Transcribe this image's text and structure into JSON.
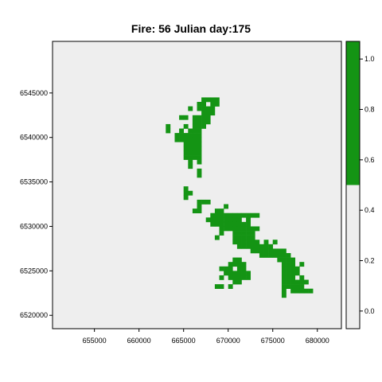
{
  "chart_data": {
    "type": "heatmap",
    "title": "Fire: 56   Julian day:175",
    "x_ticks": [
      655000,
      660000,
      665000,
      670000,
      675000,
      680000
    ],
    "y_ticks": [
      6520000,
      6525000,
      6530000,
      6535000,
      6540000,
      6545000
    ],
    "colorbar_ticks": [
      "0.0",
      "0.2",
      "0.4",
      "0.6",
      "0.8",
      "1.0"
    ],
    "xlim": [
      650300,
      682700
    ],
    "ylim": [
      6518500,
      6550800
    ],
    "colorbar_range": [
      -0.07,
      1.07
    ],
    "colorbar_break": 0.5,
    "colors": {
      "burned": "#149414",
      "unburned": "#eeeeee",
      "frame": "#000000"
    },
    "cell_size": 500,
    "cell_value": 1,
    "burned_cells": [
      [
        667000,
        6544000
      ],
      [
        667500,
        6544000
      ],
      [
        668000,
        6544000
      ],
      [
        668500,
        6544000
      ],
      [
        666500,
        6543500
      ],
      [
        667000,
        6543500
      ],
      [
        668000,
        6543500
      ],
      [
        668500,
        6543500
      ],
      [
        665500,
        6543000
      ],
      [
        666500,
        6543000
      ],
      [
        667000,
        6543000
      ],
      [
        667500,
        6543000
      ],
      [
        668000,
        6543000
      ],
      [
        667000,
        6542500
      ],
      [
        667500,
        6542500
      ],
      [
        668000,
        6542500
      ],
      [
        664500,
        6542000
      ],
      [
        665000,
        6542000
      ],
      [
        666000,
        6542000
      ],
      [
        666500,
        6542000
      ],
      [
        667000,
        6542000
      ],
      [
        667500,
        6542000
      ],
      [
        666000,
        6541500
      ],
      [
        666500,
        6541500
      ],
      [
        667000,
        6541500
      ],
      [
        667500,
        6541500
      ],
      [
        663000,
        6541000
      ],
      [
        665000,
        6541000
      ],
      [
        666000,
        6541000
      ],
      [
        666500,
        6541000
      ],
      [
        667000,
        6541000
      ],
      [
        663000,
        6540500
      ],
      [
        664500,
        6540500
      ],
      [
        665500,
        6540500
      ],
      [
        666000,
        6540500
      ],
      [
        666500,
        6540500
      ],
      [
        664000,
        6540000
      ],
      [
        664500,
        6540000
      ],
      [
        665000,
        6540000
      ],
      [
        665500,
        6540000
      ],
      [
        666000,
        6540000
      ],
      [
        666500,
        6540000
      ],
      [
        664000,
        6539500
      ],
      [
        664500,
        6539500
      ],
      [
        665000,
        6539500
      ],
      [
        665500,
        6539500
      ],
      [
        666000,
        6539500
      ],
      [
        666500,
        6539500
      ],
      [
        665000,
        6539000
      ],
      [
        665500,
        6539000
      ],
      [
        666000,
        6539000
      ],
      [
        666500,
        6539000
      ],
      [
        665000,
        6538500
      ],
      [
        665500,
        6538500
      ],
      [
        666000,
        6538500
      ],
      [
        666500,
        6538500
      ],
      [
        665000,
        6538000
      ],
      [
        665500,
        6538000
      ],
      [
        666000,
        6538000
      ],
      [
        666500,
        6538000
      ],
      [
        665000,
        6537500
      ],
      [
        665500,
        6537500
      ],
      [
        666000,
        6537500
      ],
      [
        666500,
        6537500
      ],
      [
        665500,
        6537000
      ],
      [
        666500,
        6537000
      ],
      [
        665500,
        6536500
      ],
      [
        666500,
        6536000
      ],
      [
        666500,
        6535500
      ],
      [
        665000,
        6534000
      ],
      [
        665000,
        6533500
      ],
      [
        665500,
        6533500
      ],
      [
        665000,
        6533000
      ],
      [
        666500,
        6532500
      ],
      [
        667000,
        6532500
      ],
      [
        667500,
        6532500
      ],
      [
        666500,
        6532000
      ],
      [
        669500,
        6532000
      ],
      [
        666000,
        6531500
      ],
      [
        666500,
        6531500
      ],
      [
        668500,
        6531500
      ],
      [
        669000,
        6531500
      ],
      [
        668000,
        6531000
      ],
      [
        668500,
        6531000
      ],
      [
        669000,
        6531000
      ],
      [
        669500,
        6531000
      ],
      [
        670000,
        6531000
      ],
      [
        670500,
        6531000
      ],
      [
        671000,
        6531000
      ],
      [
        671500,
        6531000
      ],
      [
        672000,
        6531000
      ],
      [
        672500,
        6531000
      ],
      [
        673000,
        6531000
      ],
      [
        667500,
        6530500
      ],
      [
        668000,
        6530500
      ],
      [
        668500,
        6530500
      ],
      [
        669000,
        6530500
      ],
      [
        669500,
        6530500
      ],
      [
        670000,
        6530500
      ],
      [
        670500,
        6530500
      ],
      [
        671000,
        6530500
      ],
      [
        672000,
        6530500
      ],
      [
        668000,
        6530000
      ],
      [
        668500,
        6530000
      ],
      [
        669000,
        6530000
      ],
      [
        669500,
        6530000
      ],
      [
        670000,
        6530000
      ],
      [
        670500,
        6530000
      ],
      [
        671000,
        6530000
      ],
      [
        671500,
        6530000
      ],
      [
        672000,
        6530000
      ],
      [
        669000,
        6529500
      ],
      [
        669500,
        6529500
      ],
      [
        670000,
        6529500
      ],
      [
        670500,
        6529500
      ],
      [
        671000,
        6529500
      ],
      [
        671500,
        6529500
      ],
      [
        672000,
        6529500
      ],
      [
        672500,
        6529500
      ],
      [
        673000,
        6529500
      ],
      [
        669000,
        6529000
      ],
      [
        670500,
        6529000
      ],
      [
        671000,
        6529000
      ],
      [
        671500,
        6529000
      ],
      [
        672000,
        6529000
      ],
      [
        672500,
        6529000
      ],
      [
        668500,
        6528500
      ],
      [
        670500,
        6528500
      ],
      [
        671000,
        6528500
      ],
      [
        671500,
        6528500
      ],
      [
        672000,
        6528500
      ],
      [
        672500,
        6528500
      ],
      [
        670500,
        6528000
      ],
      [
        671000,
        6528000
      ],
      [
        671500,
        6528000
      ],
      [
        672000,
        6528000
      ],
      [
        672500,
        6528000
      ],
      [
        673000,
        6528000
      ],
      [
        674000,
        6528000
      ],
      [
        675000,
        6528000
      ],
      [
        671000,
        6527500
      ],
      [
        671500,
        6527500
      ],
      [
        672000,
        6527500
      ],
      [
        672500,
        6527500
      ],
      [
        673000,
        6527500
      ],
      [
        673500,
        6527500
      ],
      [
        674000,
        6527500
      ],
      [
        674500,
        6527500
      ],
      [
        672500,
        6527000
      ],
      [
        673000,
        6527000
      ],
      [
        673500,
        6527000
      ],
      [
        674000,
        6527000
      ],
      [
        674500,
        6527000
      ],
      [
        675000,
        6527000
      ],
      [
        675500,
        6527000
      ],
      [
        676000,
        6527000
      ],
      [
        673500,
        6526500
      ],
      [
        674000,
        6526500
      ],
      [
        674500,
        6526500
      ],
      [
        675000,
        6526500
      ],
      [
        675500,
        6526500
      ],
      [
        676000,
        6526500
      ],
      [
        676500,
        6526500
      ],
      [
        670500,
        6526000
      ],
      [
        671000,
        6526000
      ],
      [
        675500,
        6526000
      ],
      [
        676000,
        6526000
      ],
      [
        676500,
        6526000
      ],
      [
        677000,
        6526000
      ],
      [
        670000,
        6525500
      ],
      [
        670500,
        6525500
      ],
      [
        671000,
        6525500
      ],
      [
        671500,
        6525500
      ],
      [
        676000,
        6525500
      ],
      [
        676500,
        6525500
      ],
      [
        677000,
        6525500
      ],
      [
        678000,
        6525500
      ],
      [
        669000,
        6525000
      ],
      [
        669500,
        6525000
      ],
      [
        670000,
        6525000
      ],
      [
        671000,
        6525000
      ],
      [
        671500,
        6525000
      ],
      [
        676000,
        6525000
      ],
      [
        676500,
        6525000
      ],
      [
        677000,
        6525000
      ],
      [
        677500,
        6525000
      ],
      [
        669500,
        6524500
      ],
      [
        670000,
        6524500
      ],
      [
        670500,
        6524500
      ],
      [
        671000,
        6524500
      ],
      [
        671500,
        6524500
      ],
      [
        672000,
        6524500
      ],
      [
        676000,
        6524500
      ],
      [
        676500,
        6524500
      ],
      [
        677000,
        6524500
      ],
      [
        677500,
        6524500
      ],
      [
        669000,
        6524000
      ],
      [
        670000,
        6524000
      ],
      [
        670500,
        6524000
      ],
      [
        671000,
        6524000
      ],
      [
        671500,
        6524000
      ],
      [
        672000,
        6524000
      ],
      [
        676000,
        6524000
      ],
      [
        676500,
        6524000
      ],
      [
        677000,
        6524000
      ],
      [
        678000,
        6524000
      ],
      [
        670500,
        6523500
      ],
      [
        671000,
        6523500
      ],
      [
        676000,
        6523500
      ],
      [
        676500,
        6523500
      ],
      [
        677000,
        6523500
      ],
      [
        677500,
        6523500
      ],
      [
        678000,
        6523500
      ],
      [
        678500,
        6523500
      ],
      [
        668500,
        6523000
      ],
      [
        669000,
        6523000
      ],
      [
        670000,
        6523000
      ],
      [
        676000,
        6523000
      ],
      [
        676500,
        6523000
      ],
      [
        677000,
        6523000
      ],
      [
        677500,
        6523000
      ],
      [
        678000,
        6523000
      ],
      [
        676000,
        6522500
      ],
      [
        677000,
        6522500
      ],
      [
        677500,
        6522500
      ],
      [
        678000,
        6522500
      ],
      [
        678500,
        6522500
      ],
      [
        679000,
        6522500
      ],
      [
        676000,
        6522000
      ]
    ]
  }
}
